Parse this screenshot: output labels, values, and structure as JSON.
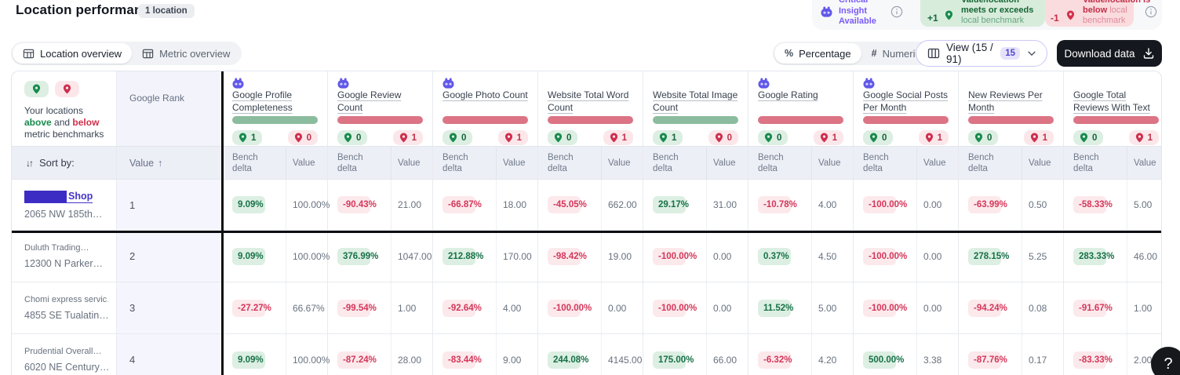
{
  "header": {
    "title": "Location performance",
    "location_count_badge": "1 location"
  },
  "legend": {
    "insight_lines": [
      "Critical",
      "Insight",
      "Available"
    ],
    "above": {
      "delta": "+1",
      "line1": "Value/location",
      "line2": "meets or exceeds",
      "line3": "local benchmark"
    },
    "below": {
      "delta": "-1",
      "line1": "Value/location is",
      "line2_bold": "below",
      "line2_light": "local",
      "line3": "benchmark"
    }
  },
  "toolbar": {
    "tabs": [
      {
        "label": "Location overview",
        "active": true
      },
      {
        "label": "Metric overview",
        "active": false
      }
    ],
    "format_toggle": [
      {
        "label": "Percentage",
        "glyph": "%",
        "active": true
      },
      {
        "label": "Numeric",
        "glyph": "#",
        "active": false
      }
    ],
    "view": {
      "label": "View (15 / 91)",
      "badge": "15"
    },
    "download_label": "Download data"
  },
  "table": {
    "benchmark_note": {
      "pre": "Your locations",
      "above": "above",
      "mid": "and",
      "below": "below",
      "post": "metric benchmarks"
    },
    "rank_header": "Google Rank",
    "sort_by_label": "Sort by:",
    "sort_arrows_glyph": "↓↑",
    "rank_sort_label": "Value",
    "rank_sort_arrow": "↑",
    "bench_delta_label": "Bench delta",
    "value_label": "Value",
    "columns": [
      {
        "name": "Google Profile Completeness",
        "insight_icon": true,
        "bar": "green",
        "above": "1",
        "below": "0"
      },
      {
        "name": "Google Review Count",
        "insight_icon": true,
        "bar": "red",
        "above": "0",
        "below": "1"
      },
      {
        "name": "Google Photo Count",
        "insight_icon": true,
        "bar": "red",
        "above": "0",
        "below": "1"
      },
      {
        "name": "Website Total Word Count",
        "insight_icon": false,
        "bar": "red",
        "above": "0",
        "below": "1"
      },
      {
        "name": "Website Total Image Count",
        "insight_icon": false,
        "bar": "green",
        "above": "1",
        "below": "0"
      },
      {
        "name": "Google Rating",
        "insight_icon": true,
        "bar": "red",
        "above": "0",
        "below": "1"
      },
      {
        "name": "Google Social Posts Per Month",
        "insight_icon": true,
        "bar": "red",
        "above": "0",
        "below": "1"
      },
      {
        "name": "New Reviews Per Month",
        "insight_icon": false,
        "bar": "red",
        "above": "0",
        "below": "1"
      },
      {
        "name": "Google Total Reviews With Text Past Year",
        "insight_icon": false,
        "bar": "red",
        "above": "0",
        "below": "1"
      }
    ],
    "rows": [
      {
        "redacted": true,
        "link_label": "Shop",
        "name": "",
        "address": "2065 NW 185th…",
        "rank": "1",
        "cells": [
          {
            "delta": "9.09%",
            "positive": true,
            "value": "100.00%"
          },
          {
            "delta": "-90.43%",
            "positive": false,
            "value": "21.00"
          },
          {
            "delta": "-66.87%",
            "positive": false,
            "value": "18.00"
          },
          {
            "delta": "-45.05%",
            "positive": false,
            "value": "662.00"
          },
          {
            "delta": "29.17%",
            "positive": true,
            "value": "31.00"
          },
          {
            "delta": "-10.78%",
            "positive": false,
            "value": "4.00"
          },
          {
            "delta": "-100.00%",
            "positive": false,
            "value": "0.00"
          },
          {
            "delta": "-63.99%",
            "positive": false,
            "value": "0.50"
          },
          {
            "delta": "-58.33%",
            "positive": false,
            "value": "5.00"
          }
        ]
      },
      {
        "redacted": false,
        "name": "Duluth Trading…",
        "address": "12300 N Parker…",
        "rank": "2",
        "cells": [
          {
            "delta": "9.09%",
            "positive": true,
            "value": "100.00%"
          },
          {
            "delta": "376.99%",
            "positive": true,
            "value": "1047.00"
          },
          {
            "delta": "212.88%",
            "positive": true,
            "value": "170.00"
          },
          {
            "delta": "-98.42%",
            "positive": false,
            "value": "19.00"
          },
          {
            "delta": "-100.00%",
            "positive": false,
            "value": "0.00"
          },
          {
            "delta": "0.37%",
            "positive": true,
            "value": "4.50"
          },
          {
            "delta": "-100.00%",
            "positive": false,
            "value": "0.00"
          },
          {
            "delta": "278.15%",
            "positive": true,
            "value": "5.25"
          },
          {
            "delta": "283.33%",
            "positive": true,
            "value": "46.00"
          }
        ]
      },
      {
        "redacted": false,
        "name": "Chomi express servic…",
        "address": "4855 SE Tualatin…",
        "rank": "3",
        "cells": [
          {
            "delta": "-27.27%",
            "positive": false,
            "value": "66.67%"
          },
          {
            "delta": "-99.54%",
            "positive": false,
            "value": "1.00"
          },
          {
            "delta": "-92.64%",
            "positive": false,
            "value": "4.00"
          },
          {
            "delta": "-100.00%",
            "positive": false,
            "value": "0.00"
          },
          {
            "delta": "-100.00%",
            "positive": false,
            "value": "0.00"
          },
          {
            "delta": "11.52%",
            "positive": true,
            "value": "5.00"
          },
          {
            "delta": "-100.00%",
            "positive": false,
            "value": "0.00"
          },
          {
            "delta": "-94.24%",
            "positive": false,
            "value": "0.08"
          },
          {
            "delta": "-91.67%",
            "positive": false,
            "value": "1.00"
          }
        ]
      },
      {
        "redacted": false,
        "name": "Prudential Overall…",
        "address": "6020 NE Century…",
        "rank": "4",
        "cells": [
          {
            "delta": "9.09%",
            "positive": true,
            "value": "100.00%"
          },
          {
            "delta": "-87.24%",
            "positive": false,
            "value": "28.00"
          },
          {
            "delta": "-83.44%",
            "positive": false,
            "value": "9.00"
          },
          {
            "delta": "244.08%",
            "positive": true,
            "value": "4145.00"
          },
          {
            "delta": "175.00%",
            "positive": true,
            "value": "66.00"
          },
          {
            "delta": "-6.32%",
            "positive": false,
            "value": "4.20"
          },
          {
            "delta": "500.00%",
            "positive": true,
            "value": "3.38"
          },
          {
            "delta": "-87.76%",
            "positive": false,
            "value": "0.17"
          },
          {
            "delta": "-83.33%",
            "positive": false,
            "value": "2.00"
          }
        ]
      }
    ]
  },
  "help_button_label": "?",
  "colors": {
    "accent_purple": "#5b4fe0",
    "positive_text": "#177148",
    "positive_bg": "#dcefe2",
    "negative_text": "#d4375a",
    "negative_bg": "#fce9ec",
    "bar_green": "#8cbc9e",
    "bar_red": "#dc7486",
    "legend_green_bg": "#d8ecdc",
    "legend_red_bg": "#fadbde"
  }
}
